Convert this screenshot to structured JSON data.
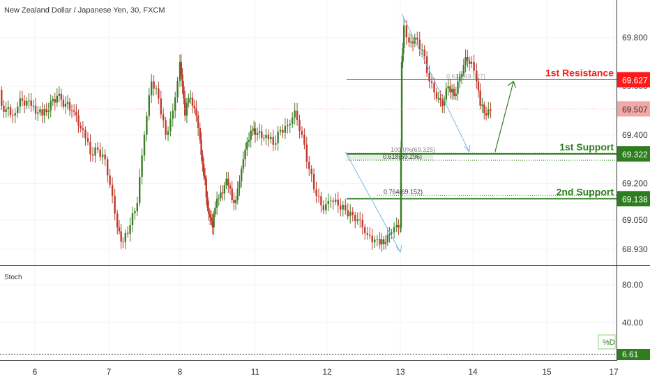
{
  "title": "New Zealand Dollar / Japanese Yen, 30, FXCM",
  "colors": {
    "up": "#3a7d24",
    "down": "#c0392b",
    "resistance": "#ff1a1a",
    "support": "#2e7d1e",
    "current": "#f4a7a7",
    "stoch": "#8fcf7a",
    "fib": "#7fb7d9",
    "axis_text": "#333333"
  },
  "chart_data": [
    {
      "type": "candlestick",
      "title": "New Zealand Dollar / Japanese Yen, 30, FXCM",
      "x_ticks": [
        "6",
        "7",
        "8",
        "11",
        "12",
        "13",
        "14",
        "15",
        "17"
      ],
      "y_ticks": [
        "69.800",
        "69.600",
        "69.400",
        "69.200",
        "69.050",
        "68.930"
      ],
      "ylim": [
        68.87,
        69.9
      ],
      "current_price": {
        "value": "69.507"
      },
      "levels": [
        {
          "name": "1st Resistance",
          "value": "69.627",
          "kind": "resistance"
        },
        {
          "name": "1st Support",
          "value": "69.322",
          "kind": "support"
        },
        {
          "name": "2nd Support",
          "value": "69.138",
          "kind": "support"
        }
      ],
      "fib_labels": [
        {
          "text": "100.0%(69.325)",
          "value": 69.325
        },
        {
          "text": "0.618(69.296)",
          "value": 69.296
        },
        {
          "text": "0.764(69.152)",
          "value": 69.152
        },
        {
          "text": "0.618(69.627)",
          "value": 69.627
        }
      ],
      "close_path": [
        [
          5.0,
          69.8
        ],
        [
          5.1,
          69.69
        ],
        [
          5.2,
          69.56
        ],
        [
          5.3,
          69.65
        ],
        [
          5.45,
          69.68
        ],
        [
          5.55,
          69.52
        ],
        [
          5.7,
          69.48
        ],
        [
          5.8,
          69.55
        ],
        [
          5.95,
          69.52
        ],
        [
          6.1,
          69.48
        ],
        [
          6.3,
          69.56
        ],
        [
          6.5,
          69.5
        ],
        [
          6.65,
          69.42
        ],
        [
          6.75,
          69.32
        ],
        [
          6.85,
          69.34
        ],
        [
          6.95,
          69.3
        ],
        [
          7.05,
          69.15
        ],
        [
          7.12,
          69.02
        ],
        [
          7.2,
          68.96
        ],
        [
          7.3,
          69.03
        ],
        [
          7.4,
          69.12
        ],
        [
          7.5,
          69.4
        ],
        [
          7.6,
          69.62
        ],
        [
          7.7,
          69.55
        ],
        [
          7.8,
          69.4
        ],
        [
          7.9,
          69.5
        ],
        [
          8.0,
          69.7
        ],
        [
          8.1,
          69.6
        ],
        [
          8.2,
          69.48
        ],
        [
          8.35,
          69.55
        ],
        [
          8.5,
          69.52
        ],
        [
          8.65,
          69.48
        ],
        [
          8.8,
          69.38
        ],
        [
          8.9,
          69.28
        ],
        [
          9.0,
          69.22
        ],
        [
          9.1,
          69.1
        ],
        [
          9.2,
          69.06
        ],
        [
          9.3,
          69.02
        ],
        [
          9.4,
          69.1
        ],
        [
          9.55,
          69.14
        ],
        [
          9.7,
          69.16
        ],
        [
          9.85,
          69.22
        ],
        [
          10.0,
          69.18
        ],
        [
          10.15,
          69.12
        ],
        [
          10.3,
          69.18
        ],
        [
          10.45,
          69.26
        ],
        [
          10.6,
          69.34
        ],
        [
          10.75,
          69.38
        ],
        [
          10.9,
          69.42
        ],
        [
          11.0,
          69.4
        ],
        [
          11.15,
          69.4
        ],
        [
          11.25,
          69.36
        ],
        [
          11.35,
          69.42
        ],
        [
          11.45,
          69.44
        ],
        [
          11.55,
          69.5
        ],
        [
          11.65,
          69.4
        ],
        [
          11.75,
          69.26
        ],
        [
          11.85,
          69.15
        ],
        [
          11.95,
          69.09
        ],
        [
          12.05,
          69.13
        ],
        [
          12.15,
          69.11
        ],
        [
          12.25,
          69.09
        ],
        [
          12.35,
          69.07
        ],
        [
          12.45,
          69.05
        ],
        [
          12.55,
          68.99
        ],
        [
          12.65,
          68.97
        ],
        [
          12.72,
          68.95
        ],
        [
          12.8,
          68.96
        ],
        [
          12.88,
          69.0
        ],
        [
          12.95,
          69.03
        ],
        [
          13.0,
          69.02
        ],
        [
          13.02,
          69.7
        ],
        [
          13.05,
          69.85
        ],
        [
          13.12,
          69.78
        ],
        [
          13.2,
          69.8
        ],
        [
          13.3,
          69.75
        ],
        [
          13.4,
          69.62
        ],
        [
          13.5,
          69.55
        ],
        [
          13.58,
          69.52
        ],
        [
          13.66,
          69.6
        ],
        [
          13.74,
          69.56
        ],
        [
          13.82,
          69.64
        ],
        [
          13.9,
          69.72
        ],
        [
          13.98,
          69.7
        ],
        [
          14.05,
          69.62
        ],
        [
          14.1,
          69.52
        ],
        [
          14.18,
          69.48
        ],
        [
          14.24,
          69.5
        ]
      ],
      "arrow_annotation": {
        "from": [
          14.3,
          69.33
        ],
        "to": [
          14.55,
          69.62
        ]
      }
    },
    {
      "type": "line",
      "title": "Stoch",
      "series": [
        {
          "name": "%D",
          "values": [
            [
              4.95,
              72
            ],
            [
              5.1,
              55
            ],
            [
              5.25,
              36
            ],
            [
              5.35,
              30
            ],
            [
              5.5,
              32
            ],
            [
              5.65,
              28
            ],
            [
              5.8,
              30
            ],
            [
              5.95,
              27
            ],
            [
              6.1,
              26
            ],
            [
              6.25,
              30
            ],
            [
              6.4,
              68
            ],
            [
              6.5,
              84
            ],
            [
              6.6,
              76
            ],
            [
              6.7,
              50
            ],
            [
              6.8,
              38
            ],
            [
              6.9,
              30
            ],
            [
              7.0,
              24
            ],
            [
              7.1,
              9
            ],
            [
              7.2,
              11
            ],
            [
              7.3,
              26
            ],
            [
              7.4,
              58
            ],
            [
              7.48,
              86
            ],
            [
              7.6,
              78
            ],
            [
              7.7,
              64
            ],
            [
              7.8,
              72
            ],
            [
              7.9,
              80
            ],
            [
              8.0,
              68
            ],
            [
              8.1,
              60
            ],
            [
              8.25,
              46
            ],
            [
              8.4,
              38
            ],
            [
              8.55,
              30
            ],
            [
              8.7,
              18
            ],
            [
              8.85,
              14
            ],
            [
              9.0,
              12
            ],
            [
              9.15,
              13
            ],
            [
              9.3,
              16
            ],
            [
              9.45,
              38
            ],
            [
              9.6,
              70
            ],
            [
              9.7,
              84
            ],
            [
              9.8,
              72
            ],
            [
              9.95,
              58
            ],
            [
              10.1,
              60
            ],
            [
              10.25,
              80
            ],
            [
              10.35,
              88
            ],
            [
              10.5,
              84
            ],
            [
              10.65,
              64
            ],
            [
              10.8,
              52
            ],
            [
              10.95,
              44
            ],
            [
              11.1,
              38
            ],
            [
              11.3,
              34
            ],
            [
              11.45,
              20
            ],
            [
              11.6,
              24
            ],
            [
              11.75,
              36
            ],
            [
              11.9,
              22
            ],
            [
              12.05,
              20
            ],
            [
              12.2,
              40
            ],
            [
              12.35,
              34
            ],
            [
              12.5,
              22
            ],
            [
              12.6,
              20
            ],
            [
              12.7,
              24
            ],
            [
              12.8,
              44
            ],
            [
              12.9,
              66
            ],
            [
              13.0,
              78
            ],
            [
              13.15,
              82
            ],
            [
              13.3,
              90
            ],
            [
              13.42,
              86
            ],
            [
              13.55,
              60
            ],
            [
              13.68,
              30
            ],
            [
              13.78,
              42
            ],
            [
              13.9,
              72
            ],
            [
              14.0,
              86
            ],
            [
              14.08,
              80
            ],
            [
              14.15,
              48
            ],
            [
              14.22,
              18
            ],
            [
              14.3,
              22
            ]
          ]
        }
      ],
      "y_ticks": [
        "80.00",
        "40.00",
        "6.61"
      ],
      "ylim": [
        0,
        96
      ],
      "d_label": "%D"
    }
  ]
}
